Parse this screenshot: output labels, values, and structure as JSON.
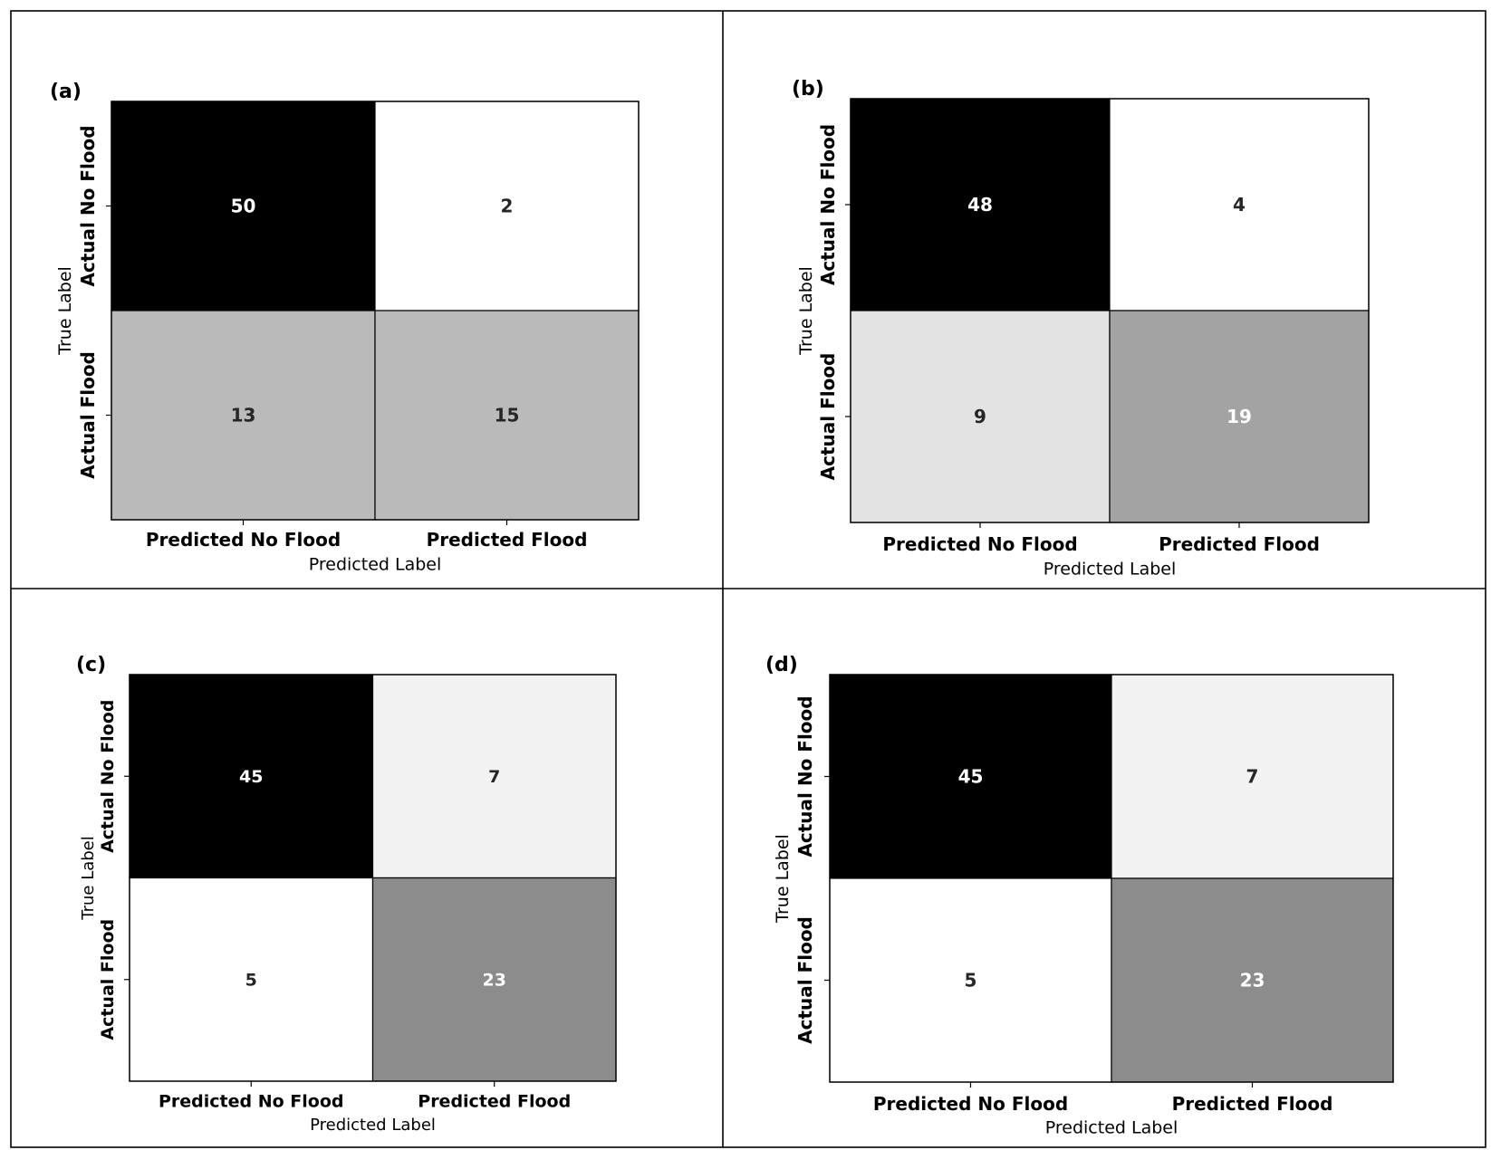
{
  "figure": {
    "panel_labels": [
      "(a)",
      "(b)",
      "(c)",
      "(d)"
    ]
  },
  "chart_data": [
    {
      "type": "heatmap",
      "panel": "(a)",
      "xlabel": "Predicted Label",
      "ylabel": "True Label",
      "x_categories": [
        "Predicted No Flood",
        "Predicted Flood"
      ],
      "y_categories": [
        "Actual No Flood",
        "Actual Flood"
      ],
      "values": [
        [
          50,
          2
        ],
        [
          13,
          15
        ]
      ],
      "cell_colors": [
        [
          "#000000",
          "#ffffff"
        ],
        [
          "#bababa",
          "#bababa"
        ]
      ],
      "text_colors": [
        [
          "#ffffff",
          "#262626"
        ],
        [
          "#262626",
          "#262626"
        ]
      ]
    },
    {
      "type": "heatmap",
      "panel": "(b)",
      "xlabel": "Predicted Label",
      "ylabel": "True Label",
      "x_categories": [
        "Predicted No Flood",
        "Predicted Flood"
      ],
      "y_categories": [
        "Actual No Flood",
        "Actual Flood"
      ],
      "values": [
        [
          48,
          4
        ],
        [
          9,
          19
        ]
      ],
      "cell_colors": [
        [
          "#000000",
          "#ffffff"
        ],
        [
          "#e3e3e3",
          "#a3a3a3"
        ]
      ],
      "text_colors": [
        [
          "#ffffff",
          "#262626"
        ],
        [
          "#262626",
          "#ffffff"
        ]
      ]
    },
    {
      "type": "heatmap",
      "panel": "(c)",
      "xlabel": "Predicted Label",
      "ylabel": "True Label",
      "x_categories": [
        "Predicted No Flood",
        "Predicted Flood"
      ],
      "y_categories": [
        "Actual No Flood",
        "Actual Flood"
      ],
      "values": [
        [
          45,
          7
        ],
        [
          5,
          23
        ]
      ],
      "cell_colors": [
        [
          "#000000",
          "#f2f2f2"
        ],
        [
          "#ffffff",
          "#8c8c8c"
        ]
      ],
      "text_colors": [
        [
          "#ffffff",
          "#262626"
        ],
        [
          "#262626",
          "#ffffff"
        ]
      ]
    },
    {
      "type": "heatmap",
      "panel": "(d)",
      "xlabel": "Predicted Label",
      "ylabel": "True Label",
      "x_categories": [
        "Predicted No Flood",
        "Predicted Flood"
      ],
      "y_categories": [
        "Actual No Flood",
        "Actual Flood"
      ],
      "values": [
        [
          45,
          7
        ],
        [
          5,
          23
        ]
      ],
      "cell_colors": [
        [
          "#000000",
          "#f2f2f2"
        ],
        [
          "#ffffff",
          "#8c8c8c"
        ]
      ],
      "text_colors": [
        [
          "#ffffff",
          "#262626"
        ],
        [
          "#262626",
          "#ffffff"
        ]
      ]
    }
  ]
}
